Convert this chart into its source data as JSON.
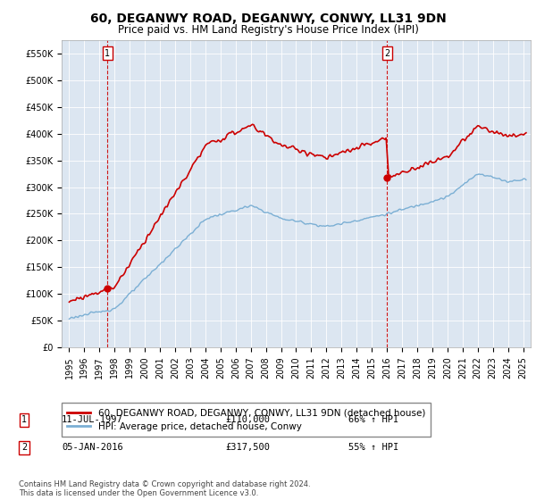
{
  "title": "60, DEGANWY ROAD, DEGANWY, CONWY, LL31 9DN",
  "subtitle": "Price paid vs. HM Land Registry's House Price Index (HPI)",
  "ylim": [
    0,
    575000
  ],
  "xlim": [
    1994.5,
    2025.5
  ],
  "yticks": [
    0,
    50000,
    100000,
    150000,
    200000,
    250000,
    300000,
    350000,
    400000,
    450000,
    500000,
    550000
  ],
  "ytick_labels": [
    "£0",
    "£50K",
    "£100K",
    "£150K",
    "£200K",
    "£250K",
    "£300K",
    "£350K",
    "£400K",
    "£450K",
    "£500K",
    "£550K"
  ],
  "plot_bg_color": "#dce6f1",
  "transaction1_date": "11-JUL-1997",
  "transaction1_price": 110000,
  "transaction1_pct": "66% ↑ HPI",
  "transaction1_x": 1997.53,
  "transaction1_y": 110000,
  "transaction2_date": "05-JAN-2016",
  "transaction2_price": 317500,
  "transaction2_pct": "55% ↑ HPI",
  "transaction2_x": 2016.02,
  "transaction2_y": 317500,
  "legend_line1": "60, DEGANWY ROAD, DEGANWY, CONWY, LL31 9DN (detached house)",
  "legend_line2": "HPI: Average price, detached house, Conwy",
  "footer": "Contains HM Land Registry data © Crown copyright and database right 2024.\nThis data is licensed under the Open Government Licence v3.0.",
  "red_color": "#cc0000",
  "blue_color": "#7bafd4",
  "box_color": "#cc0000",
  "title_fontsize": 10,
  "subtitle_fontsize": 8.5,
  "tick_fontsize": 7,
  "legend_fontsize": 7.5,
  "footer_fontsize": 6
}
